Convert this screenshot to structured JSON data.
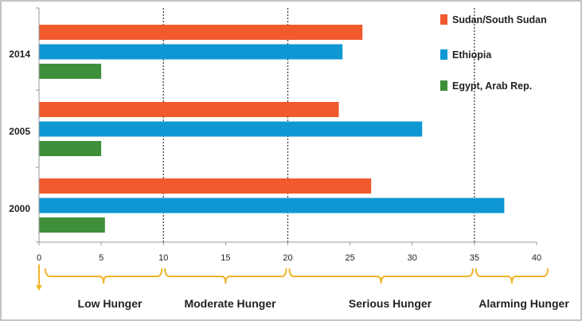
{
  "chart_data": {
    "type": "bar",
    "orientation": "horizontal",
    "categories": [
      "2014",
      "2005",
      "2000"
    ],
    "series": [
      {
        "name": "Sudan/South Sudan",
        "color": "#f05a2d",
        "values": [
          26.0,
          24.1,
          26.7
        ]
      },
      {
        "name": "Ethiopia",
        "color": "#0f97d3",
        "values": [
          24.4,
          30.8,
          37.4
        ]
      },
      {
        "name": "Egypt, Arab Rep.",
        "color": "#3f8f3a",
        "values": [
          5.0,
          5.0,
          5.3
        ]
      }
    ],
    "x_ticks": [
      "0",
      "5",
      "10",
      "15",
      "20",
      "25",
      "30",
      "35",
      "40"
    ],
    "xlim": [
      0,
      40
    ],
    "thresholds": [
      10,
      20,
      35
    ],
    "grid": false,
    "legend_position": "top-right",
    "zones": [
      {
        "label": "Low Hunger",
        "from": 0,
        "to": 10
      },
      {
        "label": "Moderate Hunger",
        "from": 10,
        "to": 20
      },
      {
        "label": "Serious Hunger",
        "from": 20,
        "to": 35
      },
      {
        "label": "Alarming Hunger",
        "from": 35,
        "to": 40
      }
    ],
    "zone_color": "#f0b429"
  }
}
